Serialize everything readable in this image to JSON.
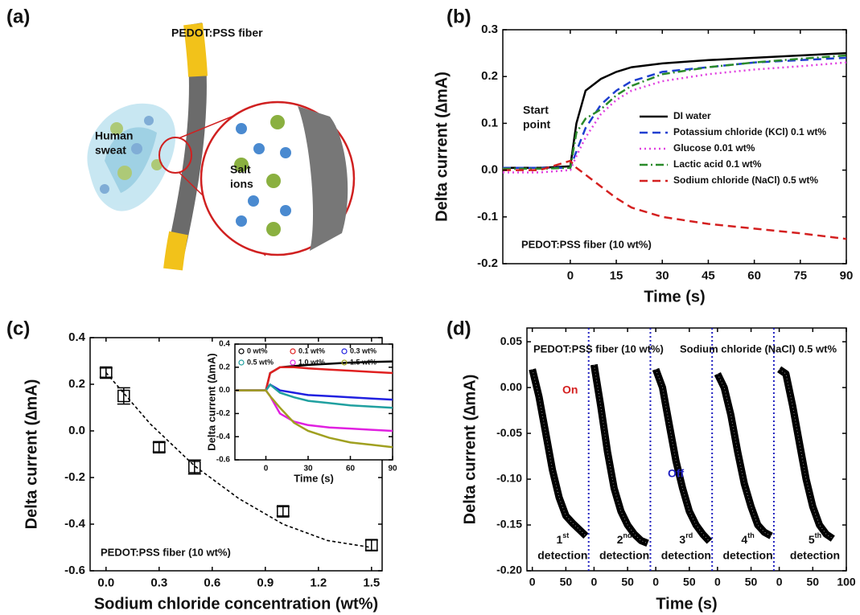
{
  "figure": {
    "panel_label": "(a)",
    "fiber_label": "PEDOT:PSS  fiber",
    "sweat_label": [
      "Human",
      "sweat"
    ],
    "ions_label": [
      "Salt",
      "ions"
    ]
  },
  "chart_data": [
    {
      "type": "line",
      "panel_label": "(b)",
      "xlabel": "Time (s)",
      "ylabel": "Delta current (∆mA)",
      "x": [
        -22,
        -10,
        0,
        2,
        5,
        10,
        15,
        20,
        30,
        45,
        60,
        75,
        90
      ],
      "xlim": [
        -22,
        90
      ],
      "xticks": [
        0,
        15,
        30,
        45,
        60,
        75,
        90
      ],
      "ylim": [
        -0.2,
        0.3
      ],
      "yticks": [
        -0.2,
        -0.1,
        {
          "value": 0,
          "label": "0.0"
        },
        0.1,
        0.2,
        0.3
      ],
      "series": [
        {
          "name": "DI water",
          "color": "#000000",
          "line_style": "solid",
          "values": [
            0.005,
            0.005,
            0.008,
            0.1,
            0.17,
            0.195,
            0.21,
            0.22,
            0.228,
            0.235,
            0.24,
            0.245,
            0.25
          ]
        },
        {
          "name": "Potassium chloride (KCl) 0.1 wt%",
          "color": "#1f3fd0",
          "line_style": "dash",
          "values": [
            0.005,
            0.005,
            0.005,
            0.04,
            0.09,
            0.14,
            0.17,
            0.19,
            0.21,
            0.22,
            0.23,
            0.235,
            0.24
          ]
        },
        {
          "name": "Glucose 0.01 wt%",
          "color": "#e040e0",
          "line_style": "dot",
          "values": [
            -0.005,
            -0.005,
            0.0,
            0.03,
            0.07,
            0.12,
            0.15,
            0.17,
            0.19,
            0.205,
            0.215,
            0.222,
            0.23
          ]
        },
        {
          "name": "Lactic acid 0.1 wt%",
          "color": "#2a8a2a",
          "line_style": "dashdot",
          "values": [
            0.003,
            0.003,
            0.005,
            0.08,
            0.11,
            0.13,
            0.16,
            0.18,
            0.205,
            0.22,
            0.23,
            0.238,
            0.245
          ]
        },
        {
          "name": "Sodium chloride (NaCl) 0.5 wt%",
          "color": "#d42020",
          "line_style": "dash",
          "values": [
            0,
            0,
            0.02,
            0.005,
            -0.01,
            -0.035,
            -0.06,
            -0.08,
            -0.1,
            -0.115,
            -0.125,
            -0.135,
            -0.147
          ]
        }
      ],
      "annotations": {
        "start": [
          "Start",
          "point"
        ],
        "sample": "PEDOT:PSS  fiber (10 wt%)"
      }
    },
    {
      "type": "scatter",
      "panel_label": "(c)",
      "xlabel": "Sodium chloride concentration (wt%)",
      "ylabel": "Delta current (∆mA)",
      "x": [
        0,
        0.1,
        0.3,
        0.5,
        1.0,
        1.5
      ],
      "values": [
        0.25,
        0.15,
        -0.07,
        -0.155,
        -0.345,
        -0.49
      ],
      "errors": [
        0.02,
        0.035,
        0.02,
        0.03,
        0.02,
        0.022
      ],
      "fit": {
        "x": [
          0,
          0.25,
          0.5,
          0.75,
          1.0,
          1.25,
          1.5
        ],
        "values": [
          0.25,
          0.03,
          -0.15,
          -0.29,
          -0.4,
          -0.47,
          -0.5
        ]
      },
      "xlim": [
        -0.09,
        1.56
      ],
      "xticks": [
        {
          "value": 0,
          "label": "0.0"
        },
        0.3,
        0.6,
        0.9,
        1.2,
        1.5
      ],
      "ylim": [
        -0.6,
        0.4
      ],
      "yticks": [
        -0.6,
        -0.4,
        -0.2,
        {
          "value": 0,
          "label": "0.0"
        },
        0.2,
        0.4
      ],
      "annotations": {
        "sample": "PEDOT:PSS  fiber (10 wt%)"
      }
    },
    {
      "type": "line",
      "xlabel": "Time (s)",
      "ylabel": "Delta current (∆mA)",
      "x": [
        -22,
        -10,
        0,
        3,
        10,
        20,
        30,
        45,
        60,
        75,
        90
      ],
      "xlim": [
        -22,
        90
      ],
      "xticks": [
        0,
        30,
        60,
        90
      ],
      "ylim": [
        -0.6,
        0.4
      ],
      "yticks": [
        -0.6,
        -0.4,
        -0.2,
        {
          "value": 0,
          "label": "0.0"
        },
        0.2,
        0.4
      ],
      "series": [
        {
          "name": "0 wt%",
          "color": "#000000",
          "values": [
            0,
            0,
            0,
            0.15,
            0.2,
            0.21,
            0.22,
            0.23,
            0.24,
            0.245,
            0.25
          ]
        },
        {
          "name": "0.1 wt%",
          "color": "#e02020",
          "values": [
            0,
            0,
            0,
            0.15,
            0.2,
            0.2,
            0.19,
            0.18,
            0.17,
            0.16,
            0.15
          ]
        },
        {
          "name": "0.3 wt%",
          "color": "#2020e0",
          "values": [
            0,
            0,
            0,
            0.05,
            0,
            -0.02,
            -0.04,
            -0.05,
            -0.06,
            -0.07,
            -0.08
          ]
        },
        {
          "name": "0.5 wt%",
          "color": "#20a0a0",
          "values": [
            0,
            0,
            0,
            0.05,
            -0.02,
            -0.06,
            -0.09,
            -0.11,
            -0.13,
            -0.14,
            -0.15
          ]
        },
        {
          "name": "1.0 wt%",
          "color": "#e020e0",
          "values": [
            0,
            0,
            0,
            -0.05,
            -0.2,
            -0.27,
            -0.3,
            -0.32,
            -0.33,
            -0.34,
            -0.35
          ]
        },
        {
          "name": "1.5 wt%",
          "color": "#a0a020",
          "values": [
            0,
            0,
            0,
            -0.05,
            -0.15,
            -0.28,
            -0.35,
            -0.41,
            -0.45,
            -0.47,
            -0.49
          ]
        }
      ]
    },
    {
      "type": "segmented_line",
      "panel_label": "(d)",
      "xlabel": "Time (s)",
      "ylabel": "Delta current (∆mA)",
      "ylim": [
        -0.2,
        0.065
      ],
      "yticks": [
        {
          "value": -0.2,
          "label": "-0.20"
        },
        -0.15,
        {
          "value": -0.1,
          "label": "-0.10"
        },
        -0.05,
        {
          "value": 0,
          "label": "0.00"
        },
        0.05
      ],
      "series": [
        {
          "ordinal_number": "1",
          "ordinal_suffix": "st",
          "label": "detection",
          "color": "#000000",
          "xlim": [
            -8,
            84
          ],
          "xticks": [
            0,
            50
          ],
          "x": [
            0,
            10,
            20,
            30,
            40,
            50,
            60,
            70,
            80
          ],
          "values": [
            0.02,
            -0.01,
            -0.05,
            -0.09,
            -0.12,
            -0.14,
            -0.148,
            -0.155,
            -0.162
          ]
        },
        {
          "ordinal_number": "2",
          "ordinal_suffix": "nd",
          "label": "detection",
          "color": "#000000",
          "xlim": [
            -8,
            84
          ],
          "xticks": [
            0,
            50
          ],
          "x": [
            0,
            10,
            20,
            30,
            40,
            50,
            60,
            70,
            80
          ],
          "values": [
            0.025,
            -0.02,
            -0.07,
            -0.11,
            -0.135,
            -0.15,
            -0.16,
            -0.167,
            -0.17
          ]
        },
        {
          "ordinal_number": "3",
          "ordinal_suffix": "rd",
          "label": "detection",
          "color": "#000000",
          "xlim": [
            -8,
            84
          ],
          "xticks": [
            0,
            50
          ],
          "x": [
            0,
            10,
            20,
            30,
            40,
            50,
            60,
            70,
            80
          ],
          "values": [
            0.02,
            0.0,
            -0.04,
            -0.08,
            -0.11,
            -0.135,
            -0.15,
            -0.16,
            -0.168
          ]
        },
        {
          "ordinal_number": "4",
          "ordinal_suffix": "th",
          "label": "detection",
          "color": "#000000",
          "xlim": [
            -8,
            84
          ],
          "xticks": [
            0,
            50
          ],
          "x": [
            0,
            10,
            20,
            30,
            40,
            50,
            60,
            70,
            80
          ],
          "values": [
            0.015,
            0.0,
            -0.03,
            -0.07,
            -0.105,
            -0.13,
            -0.15,
            -0.158,
            -0.162
          ]
        },
        {
          "ordinal_number": "5",
          "ordinal_suffix": "th",
          "label": "detection",
          "color": "#000000",
          "xlim": [
            -8,
            100
          ],
          "xticks": [
            0,
            50,
            100
          ],
          "x": [
            0,
            10,
            20,
            30,
            40,
            50,
            60,
            70,
            80
          ],
          "values": [
            0.02,
            0.015,
            -0.02,
            -0.06,
            -0.1,
            -0.13,
            -0.15,
            -0.16,
            -0.165
          ]
        }
      ],
      "annotations": {
        "sample": "PEDOT:PSS fiber (10 wt%)",
        "solution": "Sodium chloride (NaCl) 0.5 wt%",
        "on": "On",
        "off": "Off"
      }
    }
  ]
}
